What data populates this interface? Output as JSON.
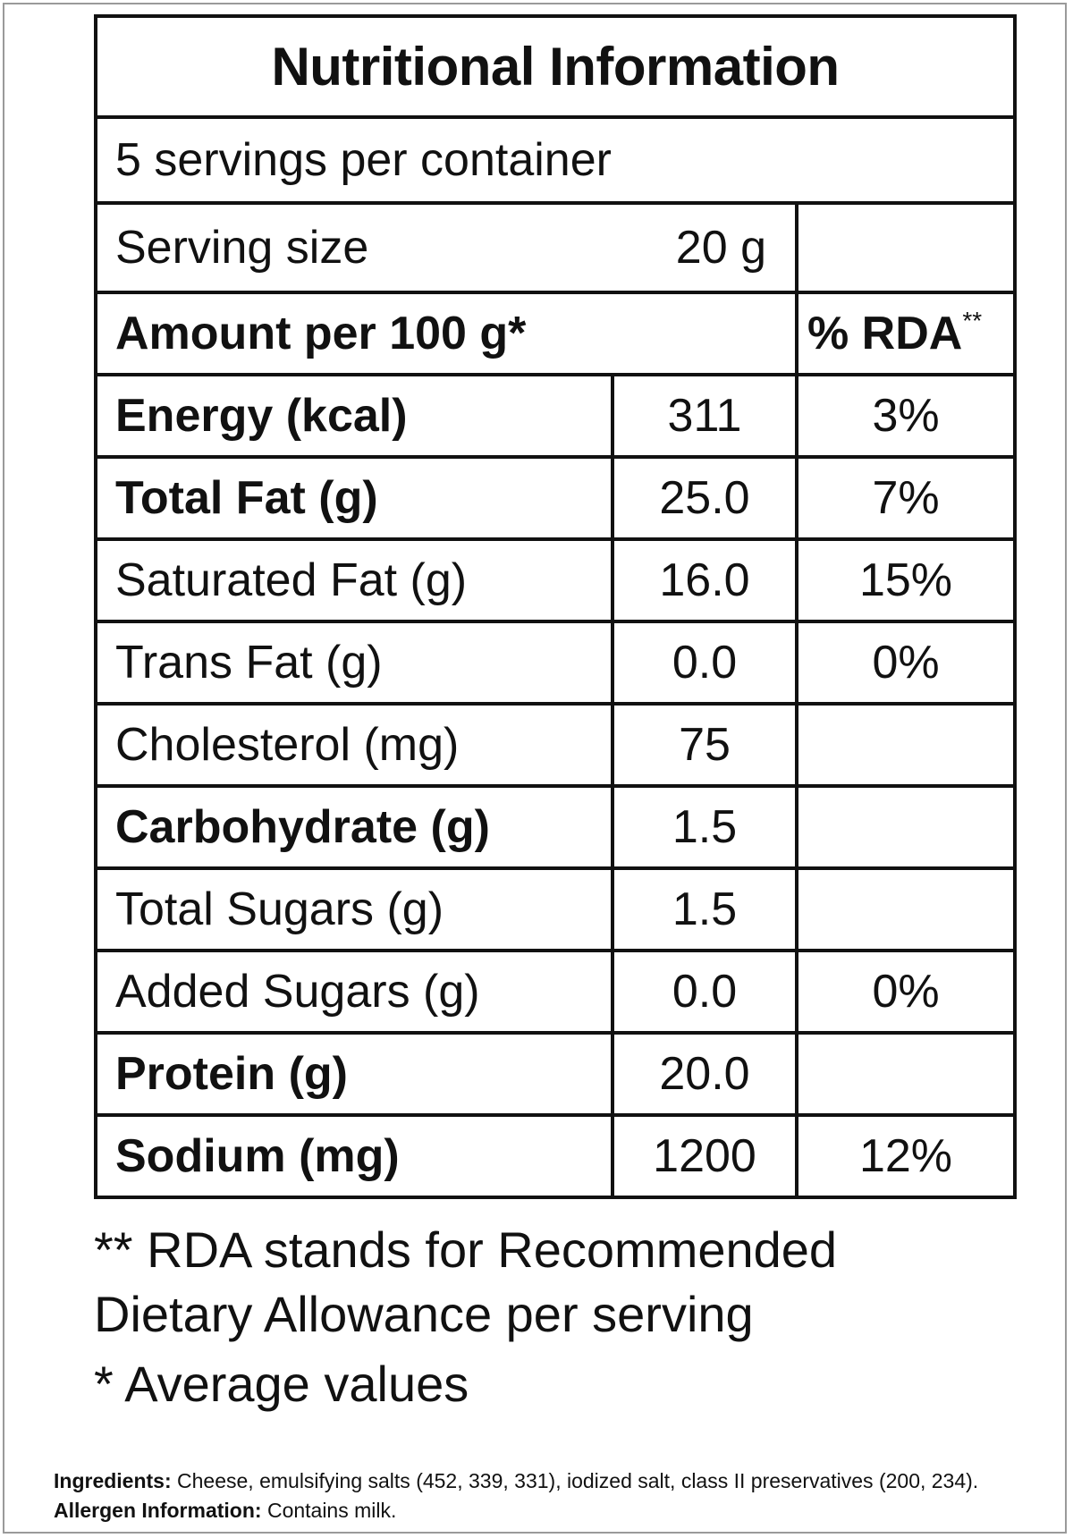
{
  "title": "Nutritional Information",
  "servings_per_container": "5 servings per container",
  "serving_size": {
    "label": "Serving size",
    "value": "20 g"
  },
  "amount_header": {
    "label": "Amount per 100 g*",
    "rda_label": "% RDA",
    "rda_marker": "**"
  },
  "nutrients": [
    {
      "name": "Energy (kcal)",
      "value": "311",
      "rda": "3%",
      "bold": true
    },
    {
      "name": "Total Fat (g)",
      "value": "25.0",
      "rda": "7%",
      "bold": true
    },
    {
      "name": "Saturated Fat (g)",
      "value": "16.0",
      "rda": "15%",
      "bold": false
    },
    {
      "name": "Trans Fat (g)",
      "value": "0.0",
      "rda": "0%",
      "bold": false
    },
    {
      "name": "Cholesterol (mg)",
      "value": "75",
      "rda": "",
      "bold": false
    },
    {
      "name": "Carbohydrate (g)",
      "value": "1.5",
      "rda": "",
      "bold": true
    },
    {
      "name": "Total Sugars (g)",
      "value": "1.5",
      "rda": "",
      "bold": false
    },
    {
      "name": "Added Sugars (g)",
      "value": "0.0",
      "rda": "0%",
      "bold": false
    },
    {
      "name": "Protein (g)",
      "value": "20.0",
      "rda": "",
      "bold": true
    },
    {
      "name": "Sodium (mg)",
      "value": "1200",
      "rda": "12%",
      "bold": true
    }
  ],
  "footnotes": {
    "rda_line1": "** RDA stands for Recommended",
    "rda_line2": "Dietary Allowance per serving",
    "average": "* Average values"
  },
  "ingredients": {
    "label": "Ingredients:",
    "text": " Cheese, emulsifying salts (452, 339, 331), iodized salt, class II preservatives (200, 234)."
  },
  "allergen": {
    "label": "Allergen Information:",
    "text": " Contains milk."
  }
}
